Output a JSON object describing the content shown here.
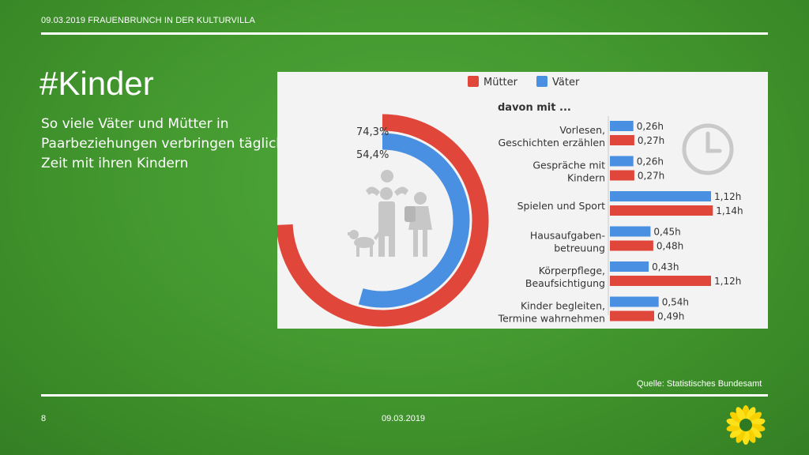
{
  "header": {
    "topline": "09.03.2019 FRAUENBRUNCH IN DER KULTURVILLA"
  },
  "slide": {
    "title": "#Kinder",
    "subtitle": "So viele Väter und Mütter in Paarbeziehungen verbringen täglich Zeit mit ihren Kindern"
  },
  "footer": {
    "source": "Quelle: Statistisches Bundesamt",
    "page": "8",
    "date": "09.03.2019"
  },
  "colors": {
    "mother": "#e0463a",
    "father": "#4a90e2",
    "background": "#3f932d"
  },
  "icons": [
    "family-icon",
    "dog-icon",
    "clock-icon",
    "sunflower-logo-icon"
  ],
  "chart_data": [
    {
      "type": "pie",
      "variant": "concentric-rings",
      "series": [
        {
          "name": "Mütter",
          "value": 74.3,
          "label": "74,3%"
        },
        {
          "name": "Väter",
          "value": 54.4,
          "label": "54,4%"
        }
      ]
    },
    {
      "type": "bar",
      "orientation": "horizontal",
      "title": "davon mit ...",
      "legend": [
        "Mütter",
        "Väter"
      ],
      "legend_position": "top",
      "categories": [
        "Vorlesen,|Geschichten erzählen",
        "Gespräche mit|Kindern",
        "Spielen und Sport",
        "Hausaufgaben-|betreuung",
        "Körperpflege,|Beaufsichtigung",
        "Kinder begleiten,|Termine wahrnehmen"
      ],
      "series": [
        {
          "name": "Väter",
          "values": [
            0.26,
            0.26,
            1.12,
            0.45,
            0.43,
            0.54
          ],
          "labels": [
            "0,26h",
            "0,26h",
            "1,12h",
            "0,45h",
            "0,43h",
            "0,54h"
          ]
        },
        {
          "name": "Mütter",
          "values": [
            0.27,
            0.27,
            1.14,
            0.48,
            1.12,
            0.49
          ],
          "labels": [
            "0,27h",
            "0,27h",
            "1,14h",
            "0,48h",
            "1,12h",
            "0,49h"
          ]
        }
      ]
    }
  ]
}
